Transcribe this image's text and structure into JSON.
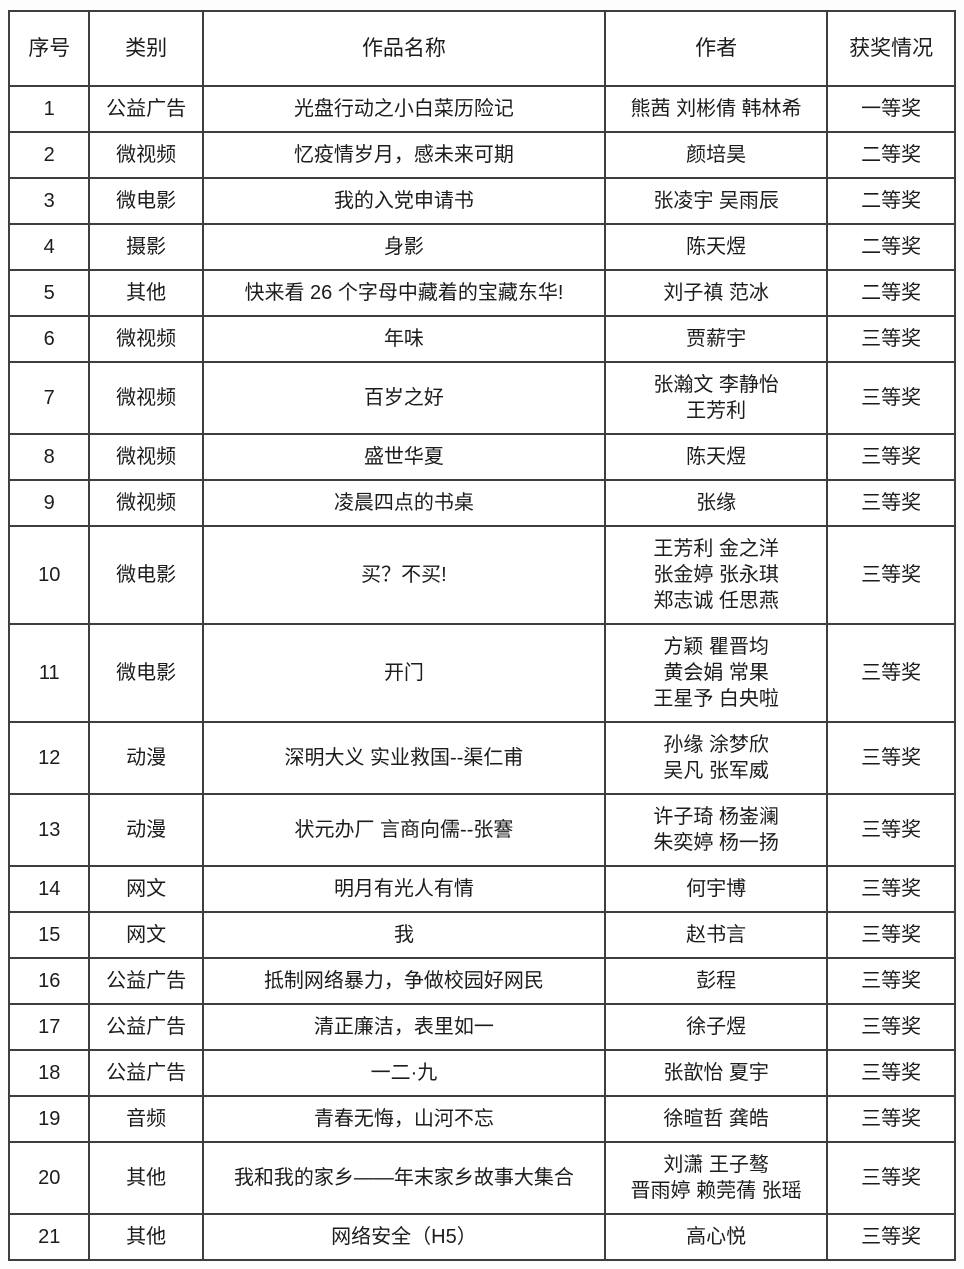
{
  "page": {
    "background": "#fdfdfd",
    "border_color": "#3e3e3e",
    "text_color": "#1c1c1c"
  },
  "table": {
    "headers": [
      "序号",
      "类别",
      "作品名称",
      "作者",
      "获奖情况"
    ],
    "rows": [
      {
        "no": "1",
        "category": "公益广告",
        "title": "光盘行动之小白菜历险记",
        "authors": [
          "熊茜 刘彬倩 韩林希"
        ],
        "award": "一等奖"
      },
      {
        "no": "2",
        "category": "微视频",
        "title": "忆疫情岁月，感未来可期",
        "authors": [
          "颜培昊"
        ],
        "award": "二等奖"
      },
      {
        "no": "3",
        "category": "微电影",
        "title": "我的入党申请书",
        "authors": [
          "张凌宇 吴雨辰"
        ],
        "award": "二等奖"
      },
      {
        "no": "4",
        "category": "摄影",
        "title": "身影",
        "authors": [
          "陈天煜"
        ],
        "award": "二等奖"
      },
      {
        "no": "5",
        "category": "其他",
        "title": "快来看 26 个字母中藏着的宝藏东华!",
        "authors": [
          "刘子禛 范冰"
        ],
        "award": "二等奖"
      },
      {
        "no": "6",
        "category": "微视频",
        "title": "年味",
        "authors": [
          "贾薪宇"
        ],
        "award": "三等奖"
      },
      {
        "no": "7",
        "category": "微视频",
        "title": "百岁之好",
        "authors": [
          "张瀚文 李静怡",
          "王芳利"
        ],
        "award": "三等奖"
      },
      {
        "no": "8",
        "category": "微视频",
        "title": "盛世华夏",
        "authors": [
          "陈天煜"
        ],
        "award": "三等奖"
      },
      {
        "no": "9",
        "category": "微视频",
        "title": "凌晨四点的书桌",
        "authors": [
          "张缘"
        ],
        "award": "三等奖"
      },
      {
        "no": "10",
        "category": "微电影",
        "title": "买？不买!",
        "authors": [
          "王芳利 金之洋",
          "张金婷 张永琪",
          "郑志诚 任思燕"
        ],
        "award": "三等奖"
      },
      {
        "no": "11",
        "category": "微电影",
        "title": "开门",
        "authors": [
          "方颖 瞿晋均",
          "黄会娟 常果",
          "王星予 白央啦"
        ],
        "award": "三等奖"
      },
      {
        "no": "12",
        "category": "动漫",
        "title": "深明大义 实业救国--渠仁甫",
        "authors": [
          "孙缘 涂梦欣",
          "吴凡 张军威"
        ],
        "award": "三等奖"
      },
      {
        "no": "13",
        "category": "动漫",
        "title": "状元办厂 言商向儒--张謇",
        "authors": [
          "许子琦 杨崟澜",
          "朱奕婷 杨一扬"
        ],
        "award": "三等奖"
      },
      {
        "no": "14",
        "category": "网文",
        "title": "明月有光人有情",
        "authors": [
          "何宇博"
        ],
        "award": "三等奖"
      },
      {
        "no": "15",
        "category": "网文",
        "title": "我",
        "authors": [
          "赵书言"
        ],
        "award": "三等奖"
      },
      {
        "no": "16",
        "category": "公益广告",
        "title": "抵制网络暴力，争做校园好网民",
        "authors": [
          "彭程"
        ],
        "award": "三等奖"
      },
      {
        "no": "17",
        "category": "公益广告",
        "title": "清正廉洁，表里如一",
        "authors": [
          "徐子煜"
        ],
        "award": "三等奖"
      },
      {
        "no": "18",
        "category": "公益广告",
        "title": "一二·九",
        "authors": [
          "张歆怡 夏宇"
        ],
        "award": "三等奖"
      },
      {
        "no": "19",
        "category": "音频",
        "title": "青春无悔，山河不忘",
        "authors": [
          "徐暄哲 龚皓"
        ],
        "award": "三等奖"
      },
      {
        "no": "20",
        "category": "其他",
        "title": "我和我的家乡——年末家乡故事大集合",
        "authors": [
          "刘潇 王子骜",
          "晋雨婷 赖莞蒨 张瑶"
        ],
        "award": "三等奖"
      },
      {
        "no": "21",
        "category": "其他",
        "title": "网络安全（H5）",
        "authors": [
          "高心悦"
        ],
        "award": "三等奖"
      }
    ]
  }
}
